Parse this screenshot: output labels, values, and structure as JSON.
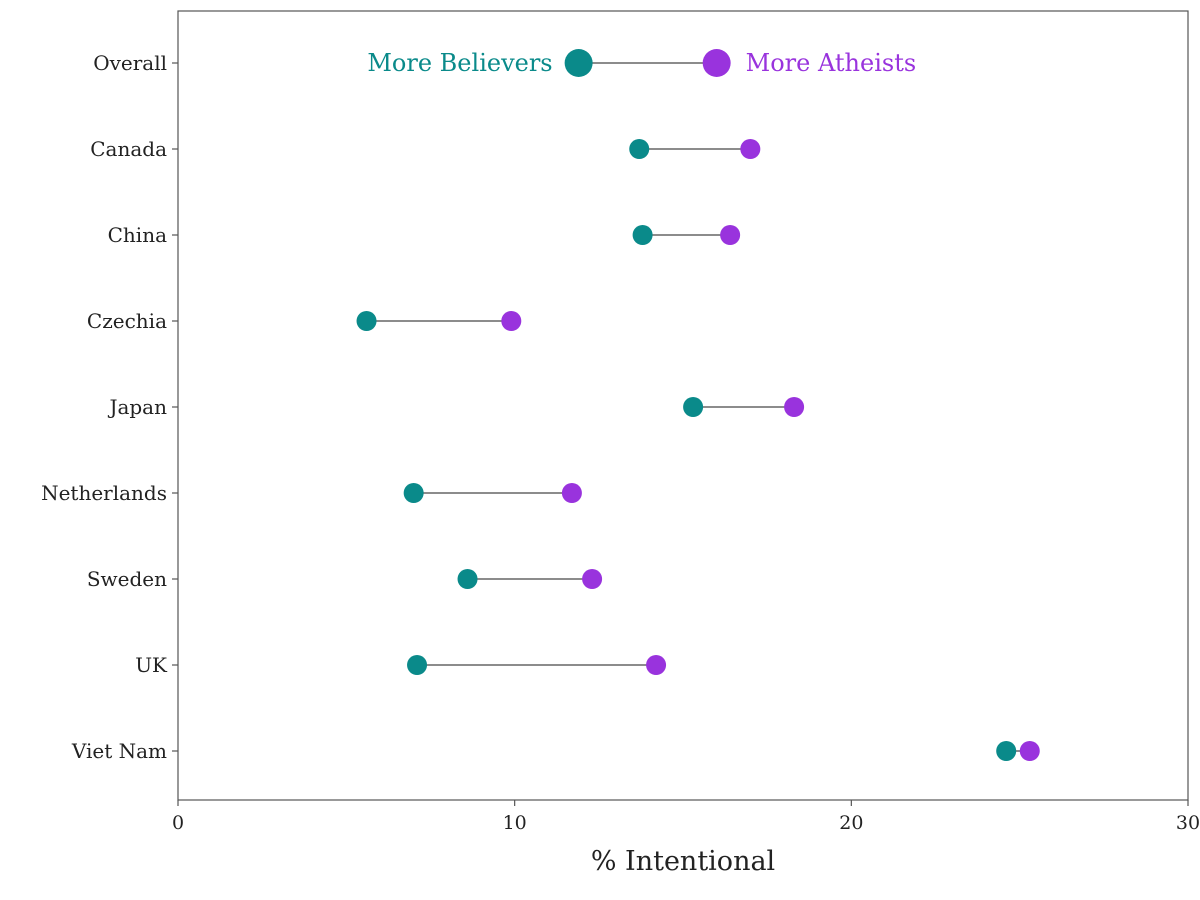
{
  "chart_data": {
    "type": "dumbbell",
    "title": "",
    "xlabel": "% Intentional",
    "ylabel": "",
    "xlim": [
      0,
      30
    ],
    "xticks": [
      0,
      10,
      20,
      30
    ],
    "grid": false,
    "legend": {
      "placement": "top row (Overall)",
      "entries": [
        {
          "name": "More Believers",
          "color": "#0A8A8A"
        },
        {
          "name": "More Atheists",
          "color": "#9933DD"
        }
      ]
    },
    "categories": [
      "Overall",
      "Canada",
      "China",
      "Czechia",
      "Japan",
      "Netherlands",
      "Sweden",
      "UK",
      "Viet Nam"
    ],
    "series": [
      {
        "name": "More Believers",
        "color": "#0A8A8A",
        "values": [
          11.9,
          13.7,
          13.8,
          5.6,
          15.3,
          7.0,
          8.6,
          7.1,
          24.6
        ]
      },
      {
        "name": "More Atheists",
        "color": "#9933DD",
        "values": [
          16.0,
          17.0,
          16.4,
          9.9,
          18.3,
          11.7,
          12.3,
          14.2,
          25.3
        ]
      }
    ],
    "connector_color": "#8C8C8C"
  }
}
